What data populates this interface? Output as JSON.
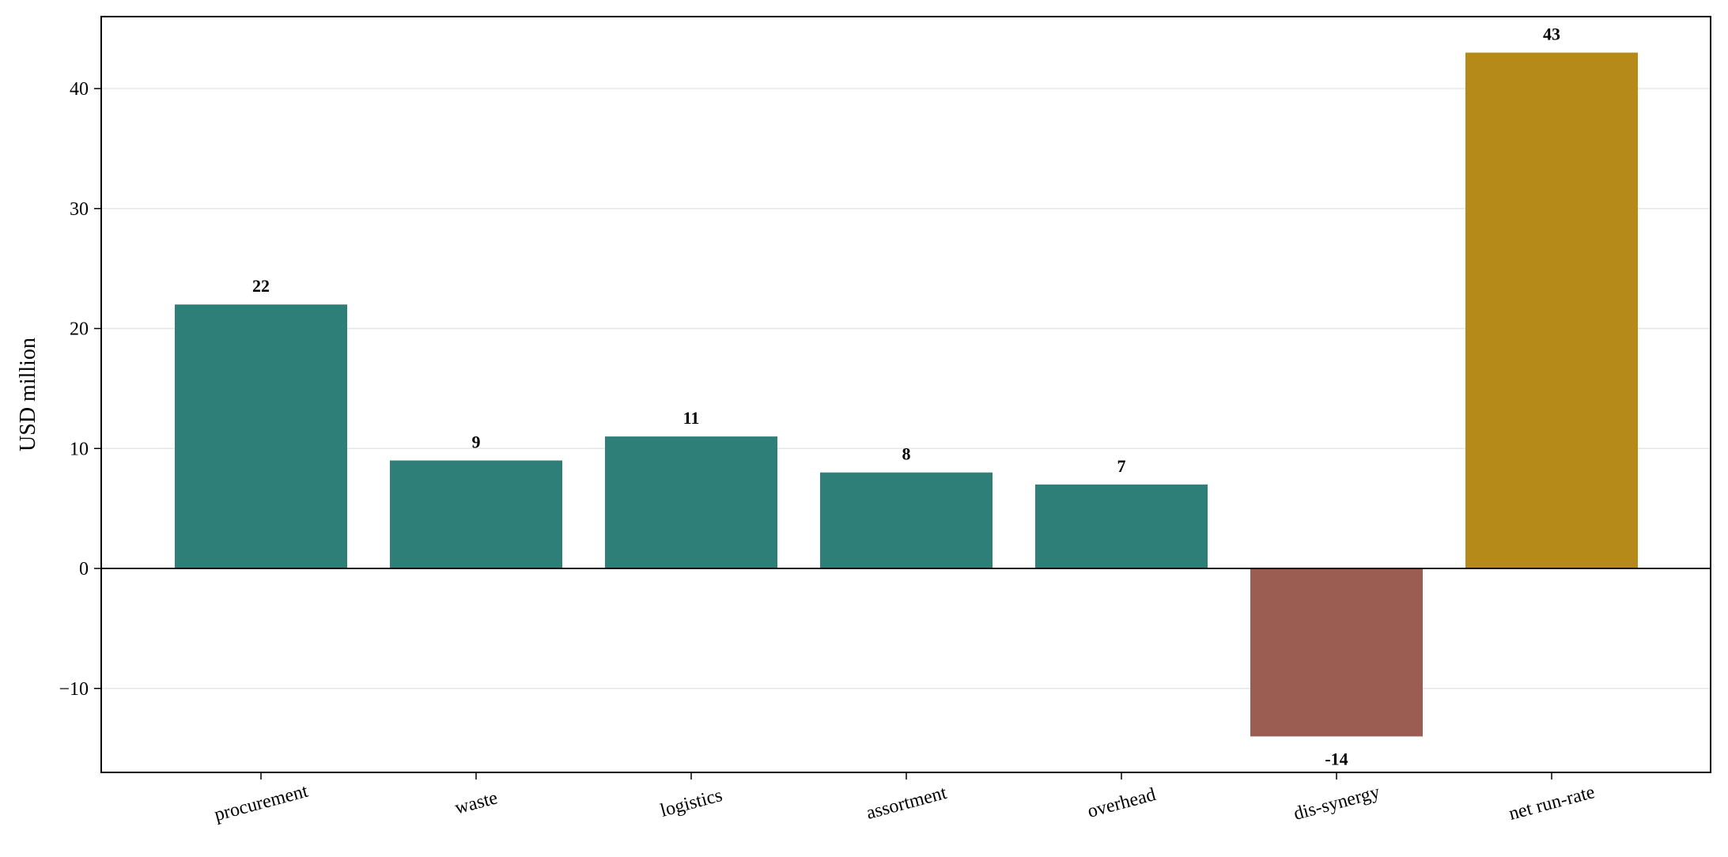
{
  "chart_data": {
    "type": "bar",
    "title": "",
    "xlabel": "",
    "ylabel": "USD million",
    "categories": [
      "procurement",
      "waste",
      "logistics",
      "assortment",
      "overhead",
      "dis-synergy",
      "net run-rate"
    ],
    "values": [
      22,
      9,
      11,
      8,
      7,
      -14,
      43
    ],
    "value_labels": [
      "22",
      "9",
      "11",
      "8",
      "7",
      "-14",
      "43"
    ],
    "ylim": [
      -17,
      46
    ],
    "yticks": [
      -10,
      0,
      10,
      20,
      30,
      40
    ],
    "ytick_labels": [
      "−10",
      "0",
      "10",
      "20",
      "30",
      "40"
    ],
    "grid": "horizontal",
    "legend": "none",
    "colors": {
      "positive": "#2e7f78",
      "negative": "#9b5d52",
      "total": "#b68a18"
    },
    "bar_kinds": [
      "positive",
      "positive",
      "positive",
      "positive",
      "positive",
      "negative",
      "total"
    ]
  }
}
